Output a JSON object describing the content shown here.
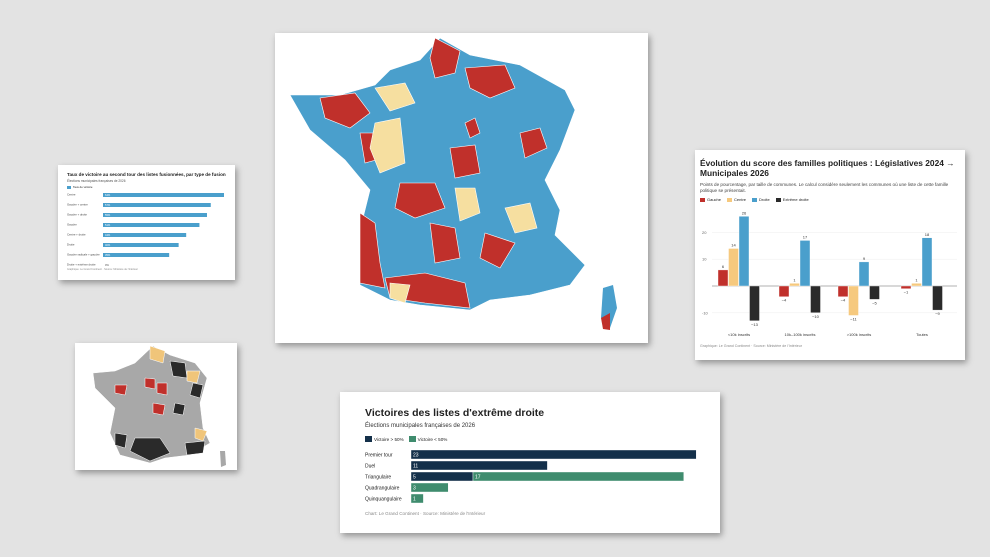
{
  "chart_data": [
    {
      "type": "bar",
      "orientation": "horizontal",
      "title": "Taux de victoire au second tour des listes fusionnées, par type de fusion",
      "subtitle": "Élections municipales françaises de 2026",
      "legend": [
        "Taux de victoire"
      ],
      "categories": [
        "Centre",
        "Gauche + centre",
        "Gauche + droite",
        "Gauche",
        "Centre + droite",
        "Droite",
        "Gauche radicale + gauche",
        "Droite + extrême droite"
      ],
      "values": [
        64,
        57,
        55,
        51,
        44,
        40,
        35,
        0
      ],
      "value_labels": [
        "64%",
        "57%",
        "55%",
        "51%",
        "44%",
        "40%",
        "35%",
        "0%"
      ],
      "source": "Graphique: Le Grand Continent · Source: Ministère de l'Intérieur",
      "color": "#4a9fcc"
    },
    {
      "type": "bar",
      "title": "Évolution du score des familles politiques : Législatives 2024 → Municipales 2026",
      "subtitle": "Points de pourcentage, par taille de communes. Le calcul considère seulement les communes où une liste de cette famille politique se présentait.",
      "categories": [
        "<10k inscrits",
        "10k–100k inscrits",
        ">100k inscrits",
        "Toutes"
      ],
      "series": [
        {
          "name": "Gauche",
          "color": "#c0302b",
          "values": [
            6,
            -4,
            -4,
            -1
          ]
        },
        {
          "name": "Centre",
          "color": "#f6c97e",
          "values": [
            14,
            1,
            -11,
            1
          ]
        },
        {
          "name": "Droite",
          "color": "#4a9fcc",
          "values": [
            26,
            17,
            9,
            18
          ]
        },
        {
          "name": "Extrême droite",
          "color": "#2a2a2a",
          "values": [
            -13,
            -10,
            -5,
            -9
          ]
        }
      ],
      "yticks": [
        -10,
        0,
        10,
        20
      ],
      "ylim": [
        -15,
        28
      ],
      "grid": true,
      "legend_position": "top-left",
      "source": "Graphique: Le Grand Continent · Source: Ministère de l'Intérieur"
    },
    {
      "type": "bar",
      "orientation": "horizontal",
      "stacked": true,
      "title": "Victoires des listes d'extrême droite",
      "subtitle": "Élections municipales françaises de 2026",
      "categories": [
        "Premier tour",
        "Duel",
        "Triangulaire",
        "Quadrangulaire",
        "Quinquangulaire"
      ],
      "series": [
        {
          "name": "Victoire > 50%",
          "color": "#14304a",
          "values": [
            23,
            11,
            5,
            0,
            0
          ]
        },
        {
          "name": "Victoire < 50%",
          "color": "#3f8c6e",
          "values": [
            0,
            0,
            17,
            3,
            1
          ]
        }
      ],
      "xlim": [
        0,
        23
      ],
      "legend_position": "top-left",
      "source": "Chart: Le Grand Continent · Source: Ministère de l'Intérieur"
    }
  ],
  "maps": {
    "colors": {
      "gauche": "#c0302b",
      "centre": "#f6dfa0",
      "droite": "#4a9fcc",
      "extreme_droite": "#2a2a2a",
      "neutral": "#a8a8a8",
      "small_centre": "#f0c57a"
    }
  }
}
